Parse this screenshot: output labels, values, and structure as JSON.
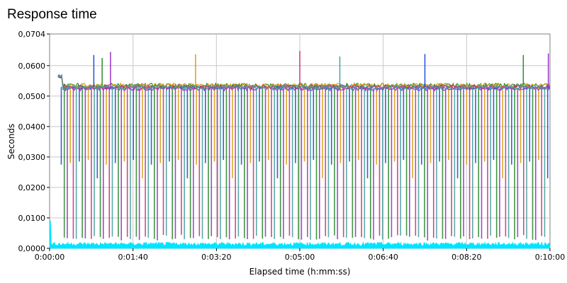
{
  "chart_data": {
    "type": "line",
    "title": "Response time",
    "xlabel": "Elapsed time (h:mm:ss)",
    "ylabel": "Seconds",
    "x_unit": "h:mm:ss",
    "xlim": [
      "0:00:00",
      "0:10:00"
    ],
    "ylim": [
      0,
      0.0704
    ],
    "x_ticks": [
      "0:00:00",
      "0:01:40",
      "0:03:20",
      "0:05:00",
      "0:06:40",
      "0:08:20",
      "0:10:00"
    ],
    "y_ticks": [
      "0,0000",
      "0,0100",
      "0,0200",
      "0,0300",
      "0,0400",
      "0,0500",
      "0,0600",
      "0,0704"
    ],
    "grid": true,
    "legend": "none",
    "series": [
      {
        "color": "#1f4fd8",
        "plateau": 0.053,
        "low": 0.003,
        "start": "0:00:10",
        "end": "0:10:00"
      },
      {
        "color": "#2e8b2e",
        "plateau": 0.0535,
        "low": 0.0028,
        "start": "0:00:10",
        "end": "0:10:00"
      },
      {
        "color": "#9933cc",
        "plateau": 0.0525,
        "low": 0.0025,
        "start": "0:00:10",
        "end": "0:10:00"
      },
      {
        "color": "#d4a017",
        "plateau": 0.0535,
        "low": 0.0029,
        "start": "0:00:10",
        "end": "0:10:00"
      },
      {
        "color": "#c8387a",
        "plateau": 0.053,
        "low": 0.003,
        "start": "0:00:10",
        "end": "0:10:00"
      },
      {
        "color": "#4aa0a0",
        "plateau": 0.0528,
        "low": 0.0027,
        "start": "0:00:10",
        "end": "0:10:00"
      },
      {
        "color": "#00e5ff",
        "plateau": 0.0008,
        "low": 0.0,
        "start": "0:00:00",
        "end": "0:10:00"
      }
    ],
    "peaks": [
      {
        "x": "0:00:53",
        "y": 0.0635
      },
      {
        "x": "0:01:03",
        "y": 0.0625
      },
      {
        "x": "0:01:13",
        "y": 0.0645
      },
      {
        "x": "0:02:55",
        "y": 0.0637
      },
      {
        "x": "0:05:00",
        "y": 0.0648
      },
      {
        "x": "0:05:48",
        "y": 0.063
      },
      {
        "x": "0:07:30",
        "y": 0.0638
      },
      {
        "x": "0:09:28",
        "y": 0.0635
      },
      {
        "x": "0:09:58",
        "y": 0.064
      }
    ]
  }
}
